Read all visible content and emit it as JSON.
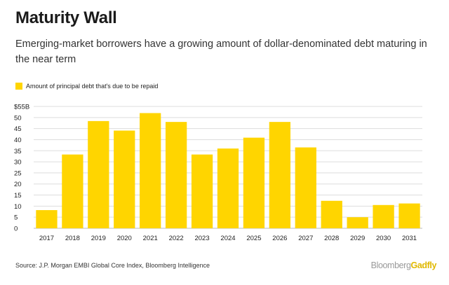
{
  "title": "Maturity Wall",
  "subtitle": "Emerging-market borrowers have a growing amount of dollar-denominated debt maturing in the near term",
  "source": "Source: J.P. Morgan EMBI Global Core Index, Bloomberg Intelligence",
  "brand": {
    "part1": "Bloomberg",
    "part2": "Gadfly"
  },
  "colors": {
    "bar": "#FFD500",
    "grid": "#dddddd",
    "text": "#1a1a1a",
    "brand_accent": "#e0b800"
  },
  "chart_data": {
    "type": "bar",
    "title": "Maturity Wall",
    "xlabel": "",
    "ylabel": "",
    "ylim": [
      0,
      55
    ],
    "grid": true,
    "legend_placement": "top-left",
    "ytick_labels": [
      "0",
      "5",
      "10",
      "15",
      "20",
      "25",
      "30",
      "35",
      "40",
      "45",
      "50",
      "$55B"
    ],
    "yticks": [
      0,
      5,
      10,
      15,
      20,
      25,
      30,
      35,
      40,
      45,
      50,
      55
    ],
    "categories": [
      "2017",
      "2018",
      "2019",
      "2020",
      "2021",
      "2022",
      "2023",
      "2024",
      "2025",
      "2026",
      "2027",
      "2028",
      "2029",
      "2030",
      "2031"
    ],
    "series": [
      {
        "name": "Amount of principal debt that's due to be repaid",
        "values": [
          8.2,
          33.3,
          48.4,
          44.1,
          52.0,
          48.0,
          33.3,
          36.0,
          40.9,
          48.0,
          36.5,
          12.4,
          5.0,
          10.5,
          11.2
        ]
      }
    ]
  }
}
